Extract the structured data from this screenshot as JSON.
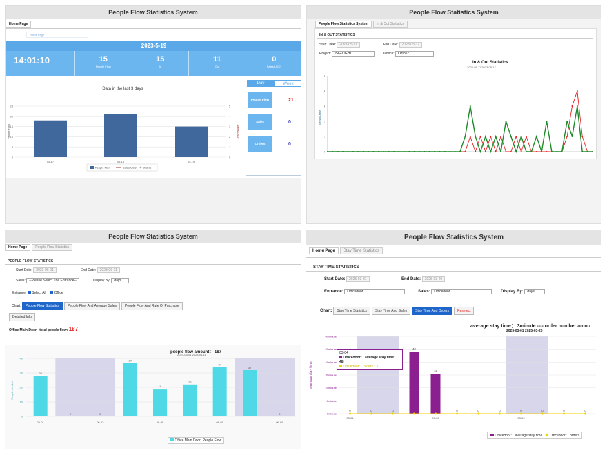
{
  "p1": {
    "title": "People Flow Statistics System",
    "tab": "Home Page",
    "subtab": "Home Page",
    "date": "2023-5-19",
    "time": "14:01:10",
    "stats": [
      {
        "value": "15",
        "label": "People Flow"
      },
      {
        "value": "15",
        "label": "In"
      },
      {
        "value": "11",
        "label": "Out"
      },
      {
        "value": "0",
        "label": "Sales(USD)"
      }
    ],
    "chart_title": "Data in the last 3 days",
    "y_left_label": "People Flow",
    "y_right_label": "Sales(USD)",
    "tabs": [
      "Day",
      "Week"
    ],
    "side": [
      {
        "label": "People Flow",
        "value": "21"
      },
      {
        "label": "Sales",
        "value": "0"
      },
      {
        "label": "Orders",
        "value": "0"
      }
    ],
    "legend": [
      "People Flow",
      "Sales(USD)",
      "Orders"
    ]
  },
  "p2": {
    "title": "People Flow Statistics System",
    "tabs": [
      "People Flow Statistics System",
      "In & Out Statistics"
    ],
    "section": "IN & OUT STATISTICS",
    "start_label": "Start Date:",
    "start_value": "2023-05-11",
    "end_label": "End Date:",
    "end_value": "2023-05-17",
    "project_label": "Project:",
    "project_value": "ISG-LIGHT",
    "device_label": "Device:",
    "device_value": "Office2",
    "chart_title": "In & Out Statistics",
    "chart_subtitle": "2023-05-11 2023-05-17",
    "ylabel": "person-time"
  },
  "p3": {
    "title": "People Flow Statistics System",
    "tabs": [
      "Home Page",
      "People Flow Statistics"
    ],
    "section": "PEOPLE FLOW STATISTICS",
    "start_label": "Start Date:",
    "start_value": "2023-06-01",
    "end_label": "End Date:",
    "end_value": "2023-06-11",
    "sales_label": "Sales:",
    "sales_value": "--Please Select The Entrance--",
    "display_label": "Display By:",
    "display_value": "days",
    "entrance_label": "Entrance:",
    "select_all": "Select All",
    "office": "Office",
    "chart_label": "Chart:",
    "buttons": [
      "People Flow Statistics",
      "People Flow And Average Sales",
      "People Flow And Rate Of Purchase"
    ],
    "detail": "Detailed Info",
    "summary_name": "Office Main Door",
    "summary_label": "total people flow:",
    "summary_value": "187",
    "chart_title": "people flow amount： 187",
    "chart_subtitle": "2023-06-01 2023-06-11",
    "ylabel": "People number",
    "legend": "Office Main Door: People Flow"
  },
  "p4": {
    "title": "People Flow Statistics System",
    "tabs": [
      "Home Page",
      "Stay Time Statistics"
    ],
    "section": "STAY TIME STATISTICS",
    "start_label": "Start Date:",
    "start_value": "2025-03-01",
    "end_label": "End Date:",
    "end_value": "2025-03-20",
    "entrance_label": "Entrance:",
    "entrance_value": "Officedoor",
    "sales_label": "Sales:",
    "sales_value": "Officedoor",
    "display_label": "Display By:",
    "display_value": "days",
    "chart_label": "Chart:",
    "buttons": [
      "Stay Time Statistics",
      "Stay Time And Sales",
      "Stay Time And Orders",
      "Reselect"
    ],
    "headline": "average stay time： 3minute ---- order number amou",
    "subline": "2025-03-01 2025-03-20",
    "ylabel": "average stay time",
    "tooltip_date": "03-04",
    "tooltip_line1": "Officedoor： average stay time： 48",
    "tooltip_line2": "Officedoor： orders： 0",
    "legend": [
      "Officedoor： average stay time",
      "Officedoor： orders"
    ]
  },
  "chart_data": [
    {
      "type": "bar",
      "title": "Data in the last 3 days",
      "categories": [
        "05-17",
        "05-18",
        "05-19"
      ],
      "values": [
        18,
        21,
        15
      ],
      "ylim": [
        0,
        25
      ],
      "yticks": [
        0,
        5,
        10,
        15,
        20,
        25
      ],
      "y2ticks": [
        0,
        1,
        2,
        3,
        4,
        5
      ],
      "series_name": "People Flow"
    },
    {
      "type": "line",
      "title": "In & Out Statistics",
      "ylim": [
        0,
        5
      ],
      "yticks": [
        0,
        1,
        2,
        3,
        4,
        5
      ],
      "series": [
        {
          "name": "In",
          "color": "#e02020",
          "values": [
            0,
            0,
            0,
            0,
            0,
            0,
            0,
            0,
            0,
            0,
            0,
            0,
            0,
            0,
            0,
            0,
            0,
            0,
            0,
            0,
            0,
            0,
            0,
            0,
            0,
            0,
            0,
            0,
            1,
            0,
            1,
            0,
            1,
            0,
            1,
            0,
            0,
            1,
            0,
            1,
            0,
            0,
            0,
            0,
            0,
            0,
            0,
            1,
            3,
            4,
            1,
            0,
            0
          ]
        },
        {
          "name": "Out",
          "color": "#1f8a2a",
          "values": [
            0,
            0,
            0,
            0,
            0,
            0,
            0,
            0,
            0,
            0,
            0,
            0,
            0,
            0,
            0,
            0,
            0,
            0,
            0,
            0,
            0,
            0,
            0,
            0,
            0,
            0,
            0,
            1,
            3,
            1,
            0,
            1,
            0,
            1,
            0,
            2,
            1,
            0,
            1,
            0,
            0,
            1,
            0,
            2,
            0,
            0,
            0,
            2,
            1,
            3,
            0,
            0,
            0
          ]
        }
      ]
    },
    {
      "type": "bar",
      "title": "people flow amount： 187",
      "categories": [
        "06-01",
        "06-02",
        "06-03",
        "06-04",
        "06-05",
        "06-06",
        "06-07",
        "06-08",
        "06-09"
      ],
      "values": [
        28,
        0,
        0,
        37,
        19,
        22,
        34,
        32,
        0
      ],
      "ylim": [
        0,
        40
      ],
      "yticks": [
        0,
        10,
        20,
        30,
        40
      ],
      "xticks": [
        "06-01",
        "06-03",
        "06-05",
        "06-07",
        "06-09"
      ],
      "weekend_bands": [
        [
          1,
          2
        ],
        [
          7,
          8
        ]
      ],
      "series_name": "Office Main Door: People Flow"
    },
    {
      "type": "bar",
      "title": "average stay time",
      "categories": [
        "03-01",
        "03-02",
        "03-03",
        "03-04",
        "03-05",
        "03-06",
        "03-07",
        "03-08",
        "03-09",
        "03-10",
        "03-11",
        "03-12"
      ],
      "values": [
        0,
        0,
        0,
        48,
        31,
        0,
        0,
        0,
        0,
        0,
        0,
        0
      ],
      "orders": [
        0,
        0,
        0,
        0,
        0,
        0,
        0,
        0,
        0,
        0,
        0,
        0
      ],
      "ylim": [
        0,
        60
      ],
      "yticks": [
        "0minute",
        "10minute",
        "20minute",
        "30minute",
        "40minute",
        "50minute",
        "60minute"
      ],
      "xticks": [
        "03-01",
        "03-05",
        "03-09"
      ],
      "weekend_bands": [
        [
          1,
          1
        ],
        [
          8,
          8
        ]
      ]
    }
  ]
}
